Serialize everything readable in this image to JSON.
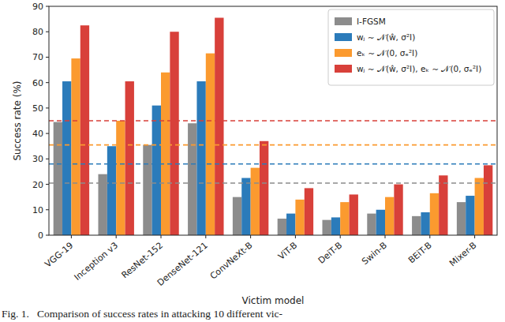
{
  "chart_data": {
    "type": "bar",
    "x_label": "Victim model",
    "y_label": "Success rate (%)",
    "categories": [
      "VGG-19",
      "Inception v3",
      "ResNet-152",
      "DenseNet-121",
      "ConvNeXt-B",
      "ViT-B",
      "DeiT-B",
      "Swin-B",
      "BEiT-B",
      "Mixer-B"
    ],
    "series": [
      {
        "name": "I-FGSM",
        "color": "#8c8c8c",
        "values": [
          44.5,
          24,
          35.5,
          44,
          15,
          6.5,
          6,
          8.5,
          7.5,
          13
        ],
        "mean": 20.5
      },
      {
        "name": "wⱼ ∼ 𝒩(ŵ, σ²I)",
        "color": "#2b7bba",
        "values": [
          60.5,
          35,
          51,
          60.5,
          22.5,
          8.5,
          7,
          10,
          9,
          15.5
        ],
        "mean": 28
      },
      {
        "name": "eₖ ∼ 𝒩(0, σₑ²I)",
        "color": "#fb9a2f",
        "values": [
          69.5,
          45,
          64,
          71.5,
          26.5,
          14,
          13,
          15,
          16.5,
          22.5
        ],
        "mean": 35.5
      },
      {
        "name": "wⱼ ∼ 𝒩(ŵ, σ²I), eₖ ∼ 𝒩(0, σₑ²I)",
        "color": "#d8403a",
        "values": [
          82.5,
          60.5,
          80,
          85.5,
          37,
          18.5,
          16,
          20,
          23.5,
          27.5
        ],
        "mean": 45
      }
    ],
    "ylim": [
      0,
      90
    ],
    "yticks": [
      0,
      10,
      20,
      30,
      40,
      50,
      60,
      70,
      80,
      90
    ],
    "legend": "upper right",
    "grid": false
  },
  "caption": "Fig. 1.   Comparison of success rates in attacking 10 different vic-"
}
